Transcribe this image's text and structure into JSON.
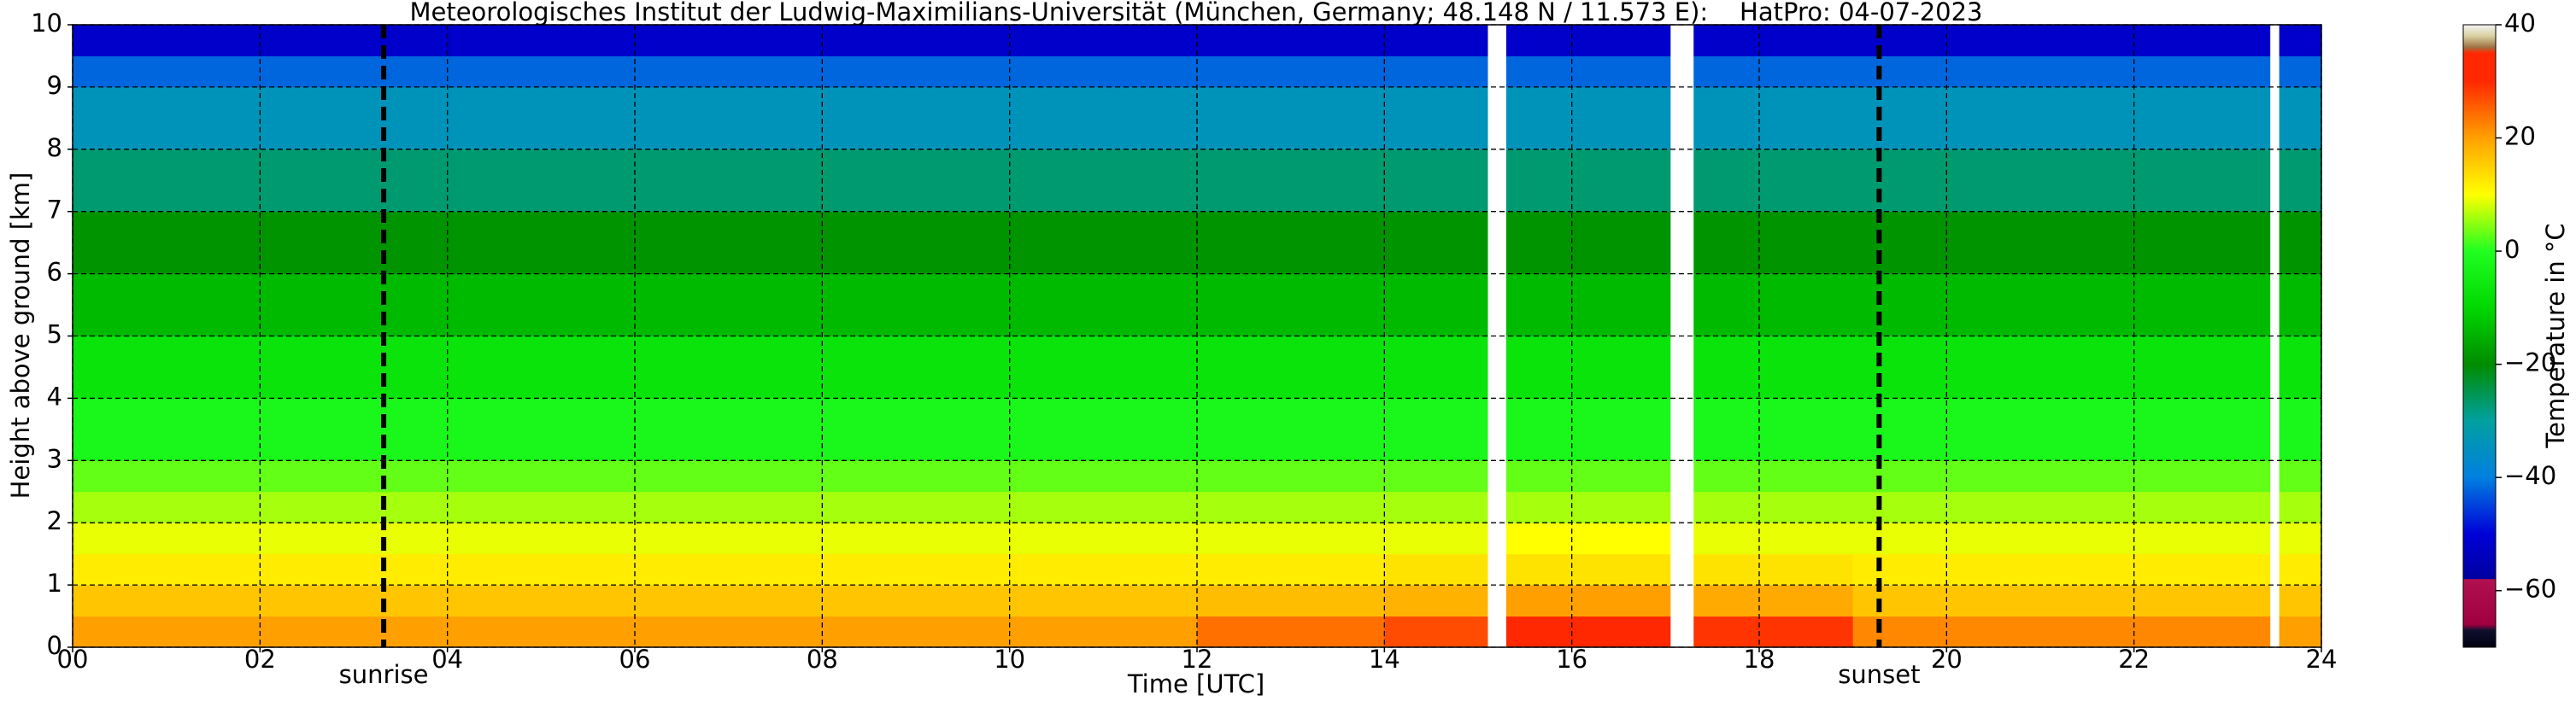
{
  "chart_data": {
    "type": "heatmap",
    "title": "Meteorologisches Institut der Ludwig-Maximilians-Universität (München, Germany; 48.148 N / 11.573 E):    HatPro: 04-07-2023",
    "x_label": "Time [UTC]",
    "y_label": "Height above ground [km]",
    "x_edges": [
      0,
      12,
      14,
      15.1,
      15.3,
      17.05,
      17.3,
      19,
      23.45,
      23.55,
      24
    ],
    "y_edges": [
      0,
      0.5,
      1,
      1.5,
      2,
      2.5,
      3,
      4,
      5,
      6,
      7,
      8,
      9,
      9.5,
      10
    ],
    "z": [
      [
        20,
        16,
        12,
        9,
        6,
        3,
        -2,
        -7,
        -14,
        -19,
        -27,
        -34,
        -42,
        -52
      ],
      [
        24,
        17,
        12,
        9,
        6,
        3,
        -2,
        -7,
        -14,
        -19,
        -27,
        -34,
        -42,
        -52
      ],
      [
        27,
        18,
        13,
        9,
        6,
        3,
        -2,
        -7,
        -14,
        -19,
        -27,
        -34,
        -42,
        -52
      ],
      null,
      [
        31,
        20,
        13,
        10,
        6,
        3,
        -2,
        -7,
        -14,
        -19,
        -27,
        -34,
        -42,
        -52
      ],
      null,
      [
        29,
        19,
        13,
        9,
        6,
        3,
        -2,
        -7,
        -14,
        -19,
        -27,
        -34,
        -42,
        -52
      ],
      [
        22,
        16,
        12,
        9,
        6,
        3,
        -2,
        -7,
        -14,
        -19,
        -27,
        -34,
        -42,
        -52
      ],
      null,
      [
        20,
        16,
        12,
        9,
        6,
        3,
        -2,
        -7,
        -14,
        -19,
        -27,
        -34,
        -42,
        -52
      ]
    ],
    "xlim": [
      0,
      24
    ],
    "ylim": [
      0,
      10
    ],
    "xticks": [
      {
        "value": 0,
        "label": "00"
      },
      {
        "value": 2,
        "label": "02"
      },
      {
        "value": 4,
        "label": "04"
      },
      {
        "value": 6,
        "label": "06"
      },
      {
        "value": 8,
        "label": "08"
      },
      10,
      12,
      14,
      16,
      18,
      20,
      22,
      24
    ],
    "yticks": [
      0,
      1,
      2,
      3,
      4,
      5,
      6,
      7,
      8,
      9,
      10
    ],
    "grid": true,
    "annotations": [
      {
        "x": 3.32,
        "label": "sunrise"
      },
      {
        "x": 19.28,
        "label": "sunset"
      }
    ],
    "colorbar": {
      "label": "Temperature in °C",
      "lim": [
        -70,
        40
      ],
      "ticks": [
        {
          "value": -60,
          "label": "−60"
        },
        {
          "value": -40,
          "label": "−40"
        },
        {
          "value": -20,
          "label": "−20"
        },
        0,
        20,
        40
      ],
      "colormap": [
        [
          -70,
          "#000010"
        ],
        [
          -67,
          "#101030"
        ],
        [
          -66,
          "#a00040"
        ],
        [
          -58,
          "#b01050"
        ],
        [
          -57.9,
          "#0000a0"
        ],
        [
          -50,
          "#0000d8"
        ],
        [
          -40,
          "#0080e0"
        ],
        [
          -30,
          "#00a0a0"
        ],
        [
          -20,
          "#008c00"
        ],
        [
          -10,
          "#00d800"
        ],
        [
          0,
          "#20ff20"
        ],
        [
          10,
          "#ffff00"
        ],
        [
          20,
          "#ffa000"
        ],
        [
          30,
          "#ff2800"
        ],
        [
          35,
          "#ff2800"
        ],
        [
          36,
          "#a07040"
        ],
        [
          38,
          "#d8d0a0"
        ],
        [
          40,
          "#f4f4f4"
        ]
      ]
    }
  }
}
